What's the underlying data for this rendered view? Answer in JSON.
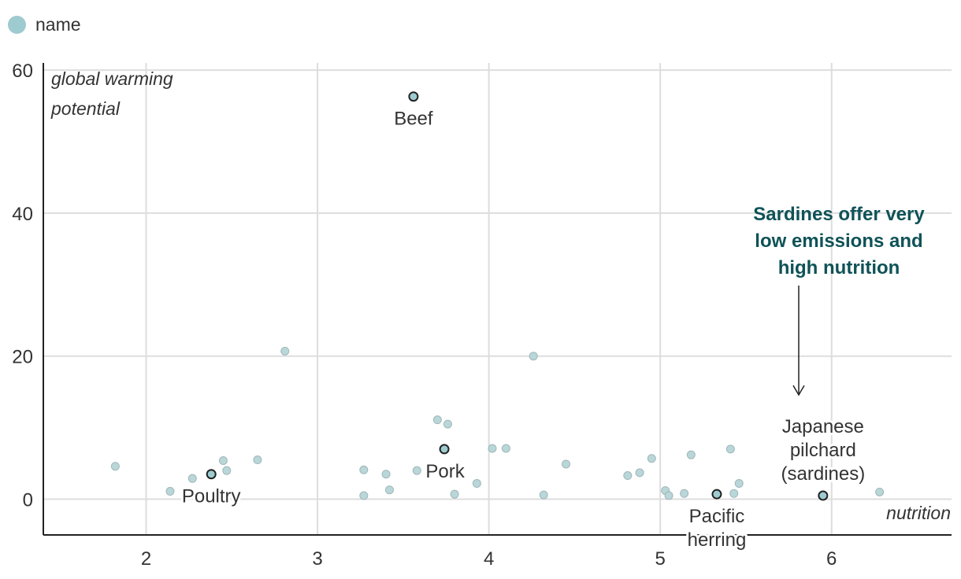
{
  "legend": {
    "label": "name",
    "color": "#9ecbd0"
  },
  "chart_data": {
    "type": "scatter",
    "title": "",
    "xlabel": "nutrition",
    "ylabel": "global warming potential",
    "ylabel_lines": [
      "global warming",
      "potential"
    ],
    "xlim": [
      1.4,
      6.7
    ],
    "ylim": [
      -5,
      61
    ],
    "xticks": [
      2,
      3,
      4,
      5,
      6
    ],
    "yticks": [
      0,
      20,
      40,
      60
    ],
    "grid": true,
    "point_color": "#b9d6d8",
    "highlight_color": "#9ecbd0",
    "points": [
      {
        "x": 1.82,
        "y": 4.6
      },
      {
        "x": 2.14,
        "y": 1.1
      },
      {
        "x": 2.27,
        "y": 2.9
      },
      {
        "x": 2.45,
        "y": 5.4
      },
      {
        "x": 2.47,
        "y": 4.0
      },
      {
        "x": 2.65,
        "y": 5.5
      },
      {
        "x": 2.81,
        "y": 20.7
      },
      {
        "x": 3.27,
        "y": 4.1
      },
      {
        "x": 3.27,
        "y": 0.5
      },
      {
        "x": 3.4,
        "y": 3.5
      },
      {
        "x": 3.42,
        "y": 1.3
      },
      {
        "x": 3.58,
        "y": 4.0
      },
      {
        "x": 3.7,
        "y": 11.1
      },
      {
        "x": 3.76,
        "y": 10.5
      },
      {
        "x": 3.8,
        "y": 0.7
      },
      {
        "x": 3.93,
        "y": 2.2
      },
      {
        "x": 4.02,
        "y": 7.1
      },
      {
        "x": 4.1,
        "y": 7.1
      },
      {
        "x": 4.26,
        "y": 20.0
      },
      {
        "x": 4.32,
        "y": 0.6
      },
      {
        "x": 4.45,
        "y": 4.9
      },
      {
        "x": 4.81,
        "y": 3.3
      },
      {
        "x": 4.88,
        "y": 3.7
      },
      {
        "x": 4.95,
        "y": 5.7
      },
      {
        "x": 5.03,
        "y": 1.2
      },
      {
        "x": 5.05,
        "y": 0.5
      },
      {
        "x": 5.14,
        "y": 0.8
      },
      {
        "x": 5.18,
        "y": 6.2
      },
      {
        "x": 5.41,
        "y": 7.0
      },
      {
        "x": 5.43,
        "y": 0.8
      },
      {
        "x": 5.46,
        "y": 2.2
      },
      {
        "x": 6.28,
        "y": 1.0
      }
    ],
    "highlighted": [
      {
        "name": "Beef",
        "x": 3.56,
        "y": 56.3,
        "label_lines": [
          "Beef"
        ],
        "label_pos": "below"
      },
      {
        "name": "Poultry",
        "x": 2.38,
        "y": 3.5,
        "label_lines": [
          "Poultry"
        ],
        "label_pos": "below"
      },
      {
        "name": "Pork",
        "x": 3.74,
        "y": 7.0,
        "label_lines": [
          "Pork"
        ],
        "label_pos": "below"
      },
      {
        "name": "Pacific herring",
        "x": 5.33,
        "y": 0.7,
        "label_lines": [
          "Pacific",
          "herring"
        ],
        "label_pos": "below"
      },
      {
        "name": "Japanese pilchard (sardines)",
        "x": 5.95,
        "y": 0.5,
        "label_lines": [
          "Japanese",
          "pilchard",
          "(sardines)"
        ],
        "label_pos": "above"
      }
    ],
    "annotation": {
      "lines": [
        "Sardines offer very",
        "low emissions and",
        "high nutrition"
      ],
      "color": "#0f5257",
      "arrow_x": 5.83,
      "arrow_from_y": 30.0,
      "arrow_to_y": 14.5
    }
  }
}
